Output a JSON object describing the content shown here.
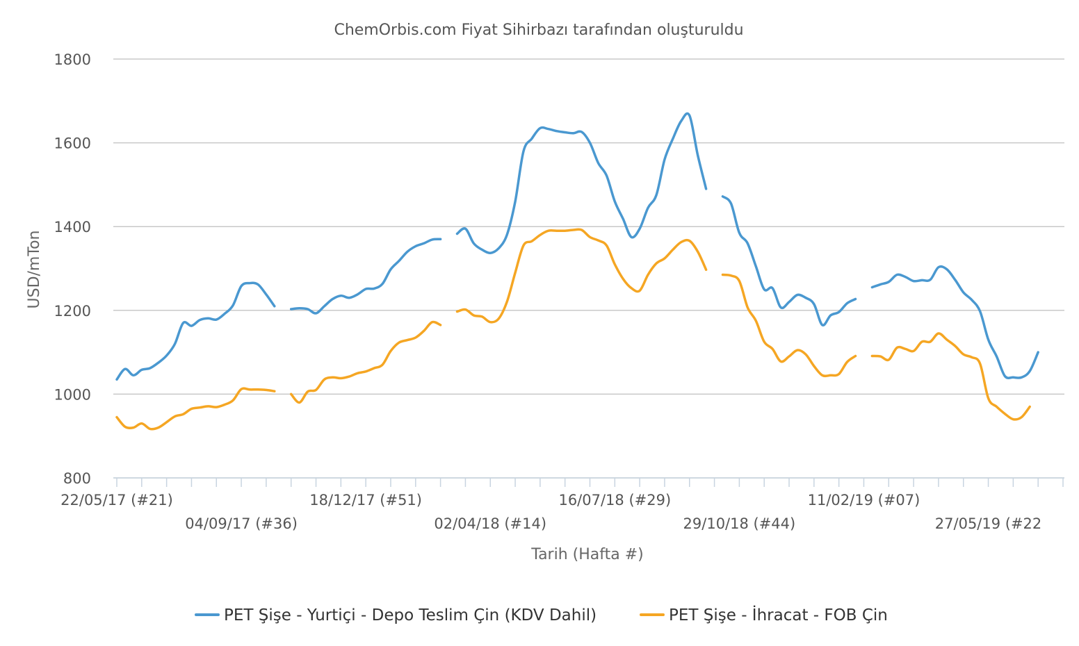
{
  "chart_data": {
    "type": "line",
    "title": "ChemOrbis.com Fiyat Sihirbazı tarafından oluşturuldu",
    "xlabel": "Tarih (Hafta #)",
    "ylabel": "USD/mTon",
    "ylim": [
      800,
      1800
    ],
    "yticks": [
      "800",
      "1000",
      "1200",
      "1400",
      "1600",
      "1800"
    ],
    "grid": true,
    "legend_position": "bottom",
    "x_range": [
      "2017-05-22",
      "2019-07-29"
    ],
    "x_tick_labels": [
      {
        "date": "2017-05-22",
        "label": "22/05/17 (#21)",
        "row": 0
      },
      {
        "date": "2017-09-04",
        "label": "04/09/17 (#36)",
        "row": 1
      },
      {
        "date": "2017-12-18",
        "label": "18/12/17 (#51)",
        "row": 0
      },
      {
        "date": "2018-04-02",
        "label": "02/04/18 (#14)",
        "row": 1
      },
      {
        "date": "2018-07-16",
        "label": "16/07/18 (#29)",
        "row": 0
      },
      {
        "date": "2018-10-29",
        "label": "29/10/18 (#44)",
        "row": 1
      },
      {
        "date": "2019-02-11",
        "label": "11/02/19 (#07)",
        "row": 0
      },
      {
        "date": "2019-05-27",
        "label": "27/05/19 (#22",
        "row": 1
      }
    ],
    "series": [
      {
        "name": "PET Şişe - Yurtiçi - Depo Teslim Çin (KDV Dahil)",
        "color": "#4a98d0",
        "segments": [
          [
            [
              "2017-05-22",
              1035
            ],
            [
              "2017-05-29",
              1060
            ],
            [
              "2017-06-05",
              1045
            ],
            [
              "2017-06-12",
              1058
            ],
            [
              "2017-06-19",
              1062
            ],
            [
              "2017-06-26",
              1075
            ],
            [
              "2017-07-03",
              1092
            ],
            [
              "2017-07-10",
              1120
            ],
            [
              "2017-07-17",
              1170
            ],
            [
              "2017-07-24",
              1163
            ],
            [
              "2017-07-31",
              1177
            ],
            [
              "2017-08-07",
              1181
            ],
            [
              "2017-08-14",
              1178
            ],
            [
              "2017-08-21",
              1192
            ],
            [
              "2017-08-28",
              1212
            ],
            [
              "2017-09-04",
              1258
            ],
            [
              "2017-09-11",
              1265
            ],
            [
              "2017-09-18",
              1262
            ],
            [
              "2017-09-25",
              1238
            ],
            [
              "2017-10-02",
              1210
            ]
          ],
          [
            [
              "2017-10-16",
              1203
            ],
            [
              "2017-10-23",
              1205
            ],
            [
              "2017-10-30",
              1203
            ],
            [
              "2017-11-06",
              1193
            ],
            [
              "2017-11-13",
              1210
            ],
            [
              "2017-11-20",
              1227
            ],
            [
              "2017-11-27",
              1235
            ],
            [
              "2017-12-04",
              1230
            ],
            [
              "2017-12-11",
              1238
            ],
            [
              "2017-12-18",
              1251
            ],
            [
              "2017-12-25",
              1252
            ],
            [
              "2018-01-01",
              1263
            ],
            [
              "2018-01-08",
              1298
            ],
            [
              "2018-01-15",
              1318
            ],
            [
              "2018-01-22",
              1340
            ],
            [
              "2018-01-29",
              1353
            ],
            [
              "2018-02-05",
              1360
            ],
            [
              "2018-02-12",
              1369
            ],
            [
              "2018-02-19",
              1370
            ]
          ],
          [
            [
              "2018-03-05",
              1383
            ],
            [
              "2018-03-12",
              1395
            ],
            [
              "2018-03-19",
              1360
            ],
            [
              "2018-03-26",
              1345
            ],
            [
              "2018-04-02",
              1337
            ],
            [
              "2018-04-09",
              1348
            ],
            [
              "2018-04-16",
              1380
            ],
            [
              "2018-04-23",
              1460
            ],
            [
              "2018-04-30",
              1580
            ],
            [
              "2018-05-07",
              1610
            ],
            [
              "2018-05-14",
              1635
            ],
            [
              "2018-05-21",
              1633
            ],
            [
              "2018-05-28",
              1628
            ],
            [
              "2018-06-04",
              1625
            ],
            [
              "2018-06-11",
              1623
            ],
            [
              "2018-06-18",
              1626
            ],
            [
              "2018-06-25",
              1600
            ],
            [
              "2018-07-02",
              1552
            ],
            [
              "2018-07-09",
              1522
            ],
            [
              "2018-07-16",
              1460
            ],
            [
              "2018-07-23",
              1418
            ],
            [
              "2018-07-30",
              1375
            ],
            [
              "2018-08-06",
              1395
            ],
            [
              "2018-08-13",
              1445
            ],
            [
              "2018-08-20",
              1475
            ],
            [
              "2018-08-27",
              1560
            ],
            [
              "2018-09-03",
              1610
            ],
            [
              "2018-09-10",
              1652
            ],
            [
              "2018-09-17",
              1665
            ],
            [
              "2018-09-24",
              1570
            ],
            [
              "2018-10-01",
              1490
            ]
          ],
          [
            [
              "2018-10-15",
              1472
            ],
            [
              "2018-10-22",
              1455
            ],
            [
              "2018-10-29",
              1385
            ],
            [
              "2018-11-05",
              1360
            ],
            [
              "2018-11-12",
              1305
            ],
            [
              "2018-11-19",
              1250
            ],
            [
              "2018-11-26",
              1253
            ],
            [
              "2018-12-03",
              1207
            ],
            [
              "2018-12-10",
              1220
            ],
            [
              "2018-12-17",
              1237
            ],
            [
              "2018-12-24",
              1230
            ],
            [
              "2018-12-31",
              1215
            ],
            [
              "2019-01-07",
              1165
            ],
            [
              "2019-01-14",
              1188
            ],
            [
              "2019-01-21",
              1196
            ],
            [
              "2019-01-28",
              1217
            ],
            [
              "2019-02-04",
              1227
            ]
          ],
          [
            [
              "2019-02-18",
              1255
            ],
            [
              "2019-02-25",
              1262
            ],
            [
              "2019-03-04",
              1268
            ],
            [
              "2019-03-11",
              1285
            ],
            [
              "2019-03-18",
              1280
            ],
            [
              "2019-03-25",
              1270
            ],
            [
              "2019-04-01",
              1272
            ],
            [
              "2019-04-08",
              1273
            ],
            [
              "2019-04-15",
              1303
            ],
            [
              "2019-04-22",
              1298
            ],
            [
              "2019-04-29",
              1273
            ],
            [
              "2019-05-06",
              1243
            ],
            [
              "2019-05-13",
              1225
            ],
            [
              "2019-05-20",
              1198
            ],
            [
              "2019-05-27",
              1130
            ],
            [
              "2019-06-03",
              1090
            ],
            [
              "2019-06-10",
              1043
            ],
            [
              "2019-06-17",
              1040
            ],
            [
              "2019-06-24",
              1040
            ],
            [
              "2019-07-01",
              1055
            ],
            [
              "2019-07-08",
              1100
            ]
          ]
        ]
      },
      {
        "name": "PET Şişe - İhracat - FOB Çin",
        "color": "#f5a623",
        "segments": [
          [
            [
              "2017-05-22",
              945
            ],
            [
              "2017-05-29",
              922
            ],
            [
              "2017-06-05",
              920
            ],
            [
              "2017-06-12",
              930
            ],
            [
              "2017-06-19",
              917
            ],
            [
              "2017-06-26",
              920
            ],
            [
              "2017-07-03",
              933
            ],
            [
              "2017-07-10",
              947
            ],
            [
              "2017-07-17",
              952
            ],
            [
              "2017-07-24",
              965
            ],
            [
              "2017-07-31",
              968
            ],
            [
              "2017-08-07",
              971
            ],
            [
              "2017-08-14",
              969
            ],
            [
              "2017-08-21",
              975
            ],
            [
              "2017-08-28",
              985
            ],
            [
              "2017-09-04",
              1012
            ],
            [
              "2017-09-11",
              1011
            ],
            [
              "2017-09-18",
              1011
            ],
            [
              "2017-09-25",
              1010
            ],
            [
              "2017-10-02",
              1007
            ]
          ],
          [
            [
              "2017-10-16",
              1000
            ],
            [
              "2017-10-23",
              980
            ],
            [
              "2017-10-30",
              1006
            ],
            [
              "2017-11-06",
              1010
            ],
            [
              "2017-11-13",
              1035
            ],
            [
              "2017-11-20",
              1040
            ],
            [
              "2017-11-27",
              1038
            ],
            [
              "2017-12-04",
              1042
            ],
            [
              "2017-12-11",
              1050
            ],
            [
              "2017-12-18",
              1054
            ],
            [
              "2017-12-25",
              1062
            ],
            [
              "2018-01-01",
              1070
            ],
            [
              "2018-01-08",
              1103
            ],
            [
              "2018-01-15",
              1123
            ],
            [
              "2018-01-22",
              1129
            ],
            [
              "2018-01-29",
              1135
            ],
            [
              "2018-02-05",
              1151
            ],
            [
              "2018-02-12",
              1172
            ],
            [
              "2018-02-19",
              1165
            ]
          ],
          [
            [
              "2018-03-05",
              1197
            ],
            [
              "2018-03-12",
              1202
            ],
            [
              "2018-03-19",
              1188
            ],
            [
              "2018-03-26",
              1185
            ],
            [
              "2018-04-02",
              1172
            ],
            [
              "2018-04-09",
              1180
            ],
            [
              "2018-04-16",
              1220
            ],
            [
              "2018-04-23",
              1290
            ],
            [
              "2018-04-30",
              1355
            ],
            [
              "2018-05-07",
              1365
            ],
            [
              "2018-05-14",
              1380
            ],
            [
              "2018-05-21",
              1390
            ],
            [
              "2018-05-28",
              1390
            ],
            [
              "2018-06-04",
              1390
            ],
            [
              "2018-06-11",
              1392
            ],
            [
              "2018-06-18",
              1392
            ],
            [
              "2018-06-25",
              1375
            ],
            [
              "2018-07-02",
              1367
            ],
            [
              "2018-07-09",
              1355
            ],
            [
              "2018-07-16",
              1310
            ],
            [
              "2018-07-23",
              1275
            ],
            [
              "2018-07-30",
              1253
            ],
            [
              "2018-08-06",
              1247
            ],
            [
              "2018-08-13",
              1285
            ],
            [
              "2018-08-20",
              1312
            ],
            [
              "2018-08-27",
              1324
            ],
            [
              "2018-09-03",
              1345
            ],
            [
              "2018-09-10",
              1363
            ],
            [
              "2018-09-17",
              1366
            ],
            [
              "2018-09-24",
              1340
            ],
            [
              "2018-10-01",
              1297
            ]
          ],
          [
            [
              "2018-10-15",
              1285
            ],
            [
              "2018-10-22",
              1283
            ],
            [
              "2018-10-29",
              1270
            ],
            [
              "2018-11-05",
              1207
            ],
            [
              "2018-11-12",
              1175
            ],
            [
              "2018-11-19",
              1125
            ],
            [
              "2018-11-26",
              1108
            ],
            [
              "2018-12-03",
              1078
            ],
            [
              "2018-12-10",
              1090
            ],
            [
              "2018-12-17",
              1105
            ],
            [
              "2018-12-24",
              1095
            ],
            [
              "2018-12-31",
              1067
            ],
            [
              "2019-01-07",
              1045
            ],
            [
              "2019-01-14",
              1045
            ],
            [
              "2019-01-21",
              1048
            ],
            [
              "2019-01-28",
              1077
            ],
            [
              "2019-02-04",
              1091
            ]
          ],
          [
            [
              "2019-02-18",
              1091
            ],
            [
              "2019-02-25",
              1090
            ],
            [
              "2019-03-04",
              1082
            ],
            [
              "2019-03-11",
              1111
            ],
            [
              "2019-03-18",
              1108
            ],
            [
              "2019-03-25",
              1103
            ],
            [
              "2019-04-01",
              1125
            ],
            [
              "2019-04-08",
              1125
            ],
            [
              "2019-04-15",
              1145
            ],
            [
              "2019-04-22",
              1130
            ],
            [
              "2019-04-29",
              1115
            ],
            [
              "2019-05-06",
              1095
            ],
            [
              "2019-05-13",
              1088
            ],
            [
              "2019-05-20",
              1073
            ],
            [
              "2019-05-27",
              990
            ],
            [
              "2019-06-03",
              970
            ],
            [
              "2019-06-10",
              953
            ],
            [
              "2019-06-17",
              940
            ],
            [
              "2019-06-24",
              945
            ],
            [
              "2019-07-01",
              970
            ]
          ]
        ]
      }
    ]
  }
}
